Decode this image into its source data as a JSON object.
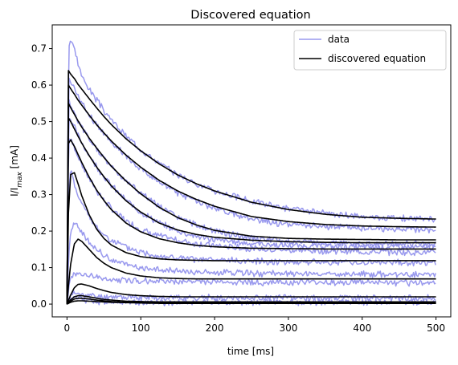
{
  "chart_data": {
    "type": "line",
    "title": "Discovered equation",
    "xlabel": "time [ms]",
    "ylabel": "I/I_max [mA]",
    "xlim": [
      -20,
      520
    ],
    "ylim": [
      -0.035,
      0.765
    ],
    "xticks": [
      0,
      100,
      200,
      300,
      400,
      500
    ],
    "yticks": [
      0.0,
      0.1,
      0.2,
      0.3,
      0.4,
      0.5,
      0.6,
      0.7
    ],
    "grid": false,
    "legend": {
      "position": "top-right",
      "entries": [
        {
          "label": "data",
          "color": "#9999ee"
        },
        {
          "label": "discovered equation",
          "color": "#000000"
        }
      ]
    },
    "colors": {
      "data": "#9999ee",
      "model": "#000000"
    },
    "x": [
      0,
      2,
      5,
      10,
      15,
      20,
      30,
      40,
      50,
      60,
      80,
      100,
      125,
      150,
      175,
      200,
      250,
      300,
      350,
      400,
      450,
      500
    ],
    "series": [
      {
        "group": "discovered equation",
        "values": [
          0,
          0.64,
          0.63,
          0.618,
          0.602,
          0.589,
          0.563,
          0.538,
          0.514,
          0.492,
          0.453,
          0.42,
          0.384,
          0.354,
          0.33,
          0.31,
          0.279,
          0.259,
          0.246,
          0.238,
          0.235,
          0.233
        ]
      },
      {
        "group": "discovered equation",
        "values": [
          0,
          0.6,
          0.59,
          0.575,
          0.559,
          0.545,
          0.518,
          0.492,
          0.469,
          0.447,
          0.408,
          0.375,
          0.339,
          0.31,
          0.287,
          0.268,
          0.24,
          0.226,
          0.218,
          0.214,
          0.212,
          0.211
        ]
      },
      {
        "group": "discovered equation",
        "values": [
          0,
          0.55,
          0.538,
          0.52,
          0.502,
          0.485,
          0.455,
          0.428,
          0.402,
          0.378,
          0.337,
          0.302,
          0.265,
          0.237,
          0.217,
          0.202,
          0.186,
          0.18,
          0.178,
          0.177,
          0.176,
          0.176
        ]
      },
      {
        "group": "discovered equation",
        "values": [
          0,
          0.51,
          0.5,
          0.48,
          0.46,
          0.441,
          0.407,
          0.376,
          0.349,
          0.324,
          0.283,
          0.252,
          0.222,
          0.203,
          0.191,
          0.183,
          0.175,
          0.171,
          0.169,
          0.168,
          0.168,
          0.168
        ]
      },
      {
        "group": "discovered equation",
        "values": [
          0,
          0.44,
          0.45,
          0.432,
          0.41,
          0.388,
          0.348,
          0.313,
          0.284,
          0.259,
          0.222,
          0.198,
          0.179,
          0.168,
          0.161,
          0.157,
          0.153,
          0.152,
          0.151,
          0.151,
          0.151,
          0.151
        ]
      },
      {
        "group": "discovered equation",
        "values": [
          0,
          0.25,
          0.355,
          0.36,
          0.33,
          0.297,
          0.245,
          0.206,
          0.18,
          0.162,
          0.141,
          0.13,
          0.124,
          0.121,
          0.12,
          0.119,
          0.119,
          0.119,
          0.119,
          0.119,
          0.119,
          0.119
        ]
      },
      {
        "group": "discovered equation",
        "values": [
          0,
          0.05,
          0.11,
          0.165,
          0.178,
          0.172,
          0.15,
          0.128,
          0.112,
          0.1,
          0.085,
          0.077,
          0.072,
          0.07,
          0.069,
          0.069,
          0.069,
          0.069,
          0.069,
          0.069,
          0.069,
          0.069
        ]
      },
      {
        "group": "discovered equation",
        "values": [
          0,
          0.01,
          0.025,
          0.045,
          0.054,
          0.055,
          0.05,
          0.043,
          0.037,
          0.032,
          0.026,
          0.023,
          0.021,
          0.02,
          0.02,
          0.02,
          0.02,
          0.02,
          0.02,
          0.02,
          0.02,
          0.02
        ]
      },
      {
        "group": "discovered equation",
        "values": [
          0,
          0.005,
          0.012,
          0.02,
          0.023,
          0.023,
          0.02,
          0.016,
          0.013,
          0.011,
          0.008,
          0.007,
          0.006,
          0.006,
          0.006,
          0.006,
          0.006,
          0.006,
          0.006,
          0.006,
          0.006,
          0.006
        ]
      },
      {
        "group": "discovered equation",
        "values": [
          0,
          0.003,
          0.008,
          0.014,
          0.016,
          0.016,
          0.014,
          0.011,
          0.009,
          0.007,
          0.005,
          0.004,
          0.003,
          0.003,
          0.003,
          0.003,
          0.003,
          0.003,
          0.003,
          0.003,
          0.003,
          0.003
        ]
      },
      {
        "group": "discovered equation",
        "values": [
          0,
          0.002,
          0.005,
          0.008,
          0.009,
          0.009,
          0.008,
          0.007,
          0.006,
          0.005,
          0.004,
          0.003,
          0.002,
          0.002,
          0.002,
          0.002,
          0.002,
          0.002,
          0.002,
          0.002,
          0.002,
          0.002
        ]
      },
      {
        "group": "data",
        "values": [
          0,
          0.7,
          0.725,
          0.7,
          0.66,
          0.625,
          0.59,
          0.56,
          0.53,
          0.505,
          0.46,
          0.425,
          0.385,
          0.355,
          0.33,
          0.31,
          0.282,
          0.262,
          0.248,
          0.24,
          0.236,
          0.232
        ]
      },
      {
        "group": "data",
        "values": [
          0,
          0.62,
          0.61,
          0.59,
          0.57,
          0.552,
          0.52,
          0.492,
          0.468,
          0.445,
          0.405,
          0.37,
          0.335,
          0.305,
          0.282,
          0.262,
          0.232,
          0.218,
          0.212,
          0.208,
          0.205,
          0.205
        ]
      },
      {
        "group": "data",
        "values": [
          0,
          0.56,
          0.545,
          0.522,
          0.5,
          0.482,
          0.452,
          0.425,
          0.4,
          0.377,
          0.338,
          0.305,
          0.268,
          0.238,
          0.216,
          0.2,
          0.18,
          0.172,
          0.168,
          0.166,
          0.165,
          0.164
        ]
      },
      {
        "group": "data",
        "values": [
          0,
          0.52,
          0.505,
          0.485,
          0.462,
          0.442,
          0.408,
          0.378,
          0.35,
          0.325,
          0.284,
          0.252,
          0.222,
          0.2,
          0.186,
          0.176,
          0.166,
          0.16,
          0.158,
          0.156,
          0.156,
          0.155
        ]
      },
      {
        "group": "data",
        "values": [
          0,
          0.46,
          0.45,
          0.43,
          0.405,
          0.382,
          0.345,
          0.312,
          0.285,
          0.262,
          0.228,
          0.205,
          0.186,
          0.175,
          0.166,
          0.16,
          0.152,
          0.148,
          0.146,
          0.144,
          0.142,
          0.142
        ]
      },
      {
        "group": "data",
        "values": [
          0,
          0.3,
          0.37,
          0.33,
          0.3,
          0.275,
          0.238,
          0.21,
          0.19,
          0.175,
          0.155,
          0.142,
          0.132,
          0.126,
          0.122,
          0.12,
          0.118,
          0.116,
          0.115,
          0.114,
          0.114,
          0.113
        ]
      },
      {
        "group": "data",
        "values": [
          0,
          0.12,
          0.2,
          0.22,
          0.21,
          0.195,
          0.17,
          0.15,
          0.135,
          0.122,
          0.108,
          0.1,
          0.094,
          0.09,
          0.088,
          0.086,
          0.084,
          0.083,
          0.082,
          0.082,
          0.082,
          0.081
        ]
      },
      {
        "group": "data",
        "values": [
          0,
          0.04,
          0.07,
          0.085,
          0.085,
          0.082,
          0.077,
          0.073,
          0.07,
          0.068,
          0.066,
          0.064,
          0.063,
          0.062,
          0.061,
          0.06,
          0.06,
          0.059,
          0.059,
          0.059,
          0.058,
          0.058
        ]
      },
      {
        "group": "data",
        "values": [
          0,
          0.015,
          0.025,
          0.03,
          0.028,
          0.026,
          0.023,
          0.021,
          0.02,
          0.02,
          0.019,
          0.018,
          0.018,
          0.018,
          0.017,
          0.017,
          0.017,
          0.017,
          0.017,
          0.017,
          0.017,
          0.017
        ]
      },
      {
        "group": "data",
        "values": [
          0,
          0.008,
          0.014,
          0.016,
          0.015,
          0.013,
          0.01,
          0.008,
          0.007,
          0.006,
          0.005,
          0.005,
          0.005,
          0.005,
          0.005,
          0.005,
          0.005,
          0.005,
          0.005,
          0.005,
          0.005,
          0.005
        ]
      }
    ]
  }
}
